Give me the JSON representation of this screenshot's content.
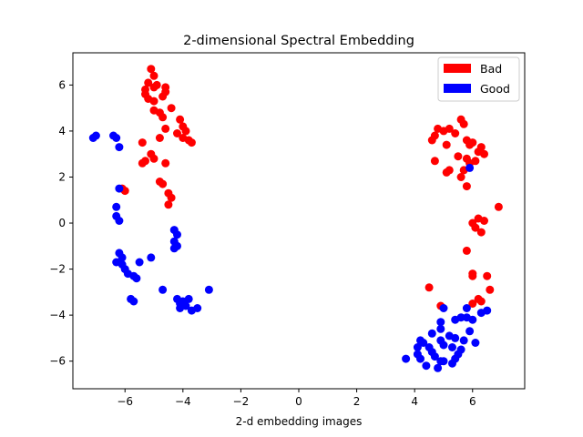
{
  "chart_data": {
    "type": "scatter",
    "title": "2-dimensional Spectral Embedding",
    "xlabel": "2-d embedding images",
    "ylabel": "",
    "xlim": [
      -7.8,
      7.8
    ],
    "ylim": [
      -7.2,
      7.4
    ],
    "xticks": [
      -6,
      -4,
      -2,
      0,
      2,
      4,
      6
    ],
    "yticks": [
      -6,
      -4,
      -2,
      0,
      2,
      4,
      6
    ],
    "legend_position": "top-right",
    "series": [
      {
        "name": "Bad",
        "color": "#ff0000",
        "points": [
          [
            -5.1,
            6.7
          ],
          [
            -5.0,
            6.4
          ],
          [
            -5.2,
            6.1
          ],
          [
            -5.3,
            5.8
          ],
          [
            -5.0,
            5.9
          ],
          [
            -4.9,
            6.0
          ],
          [
            -4.6,
            5.9
          ],
          [
            -4.6,
            5.7
          ],
          [
            -5.3,
            5.6
          ],
          [
            -5.2,
            5.4
          ],
          [
            -5.0,
            5.3
          ],
          [
            -4.7,
            5.5
          ],
          [
            -4.4,
            5.0
          ],
          [
            -5.0,
            4.9
          ],
          [
            -4.8,
            4.8
          ],
          [
            -4.7,
            4.6
          ],
          [
            -4.1,
            4.5
          ],
          [
            -4.0,
            4.2
          ],
          [
            -4.6,
            4.1
          ],
          [
            -3.9,
            4.0
          ],
          [
            -4.2,
            3.9
          ],
          [
            -4.0,
            3.7
          ],
          [
            -3.8,
            3.6
          ],
          [
            -3.7,
            3.5
          ],
          [
            -4.8,
            3.7
          ],
          [
            -5.4,
            3.5
          ],
          [
            -5.1,
            3.0
          ],
          [
            -5.0,
            2.8
          ],
          [
            -5.3,
            2.7
          ],
          [
            -5.4,
            2.6
          ],
          [
            -4.6,
            2.6
          ],
          [
            -4.8,
            1.8
          ],
          [
            -4.7,
            1.7
          ],
          [
            -4.5,
            1.3
          ],
          [
            -4.4,
            1.1
          ],
          [
            -4.5,
            0.8
          ],
          [
            -6.1,
            1.5
          ],
          [
            -6.0,
            1.4
          ],
          [
            4.8,
            4.1
          ],
          [
            5.0,
            4.0
          ],
          [
            5.2,
            4.1
          ],
          [
            5.6,
            4.5
          ],
          [
            5.7,
            4.3
          ],
          [
            5.4,
            3.9
          ],
          [
            4.7,
            3.8
          ],
          [
            4.6,
            3.6
          ],
          [
            5.8,
            3.6
          ],
          [
            6.0,
            3.5
          ],
          [
            5.9,
            3.4
          ],
          [
            6.3,
            3.3
          ],
          [
            6.2,
            3.1
          ],
          [
            5.1,
            3.4
          ],
          [
            5.5,
            2.9
          ],
          [
            6.4,
            3.0
          ],
          [
            5.8,
            2.8
          ],
          [
            5.9,
            2.6
          ],
          [
            6.1,
            2.7
          ],
          [
            4.7,
            2.7
          ],
          [
            5.2,
            2.3
          ],
          [
            5.1,
            2.2
          ],
          [
            5.7,
            2.3
          ],
          [
            5.6,
            2.0
          ],
          [
            5.8,
            1.6
          ],
          [
            6.0,
            0.0
          ],
          [
            6.2,
            0.2
          ],
          [
            6.4,
            0.1
          ],
          [
            6.1,
            -0.2
          ],
          [
            6.3,
            -0.4
          ],
          [
            6.9,
            0.7
          ],
          [
            5.8,
            -1.2
          ],
          [
            6.0,
            -2.2
          ],
          [
            6.0,
            -2.3
          ],
          [
            6.5,
            -2.3
          ],
          [
            6.6,
            -2.9
          ],
          [
            6.0,
            -3.5
          ],
          [
            6.2,
            -3.3
          ],
          [
            4.5,
            -2.8
          ],
          [
            4.9,
            -3.6
          ],
          [
            6.3,
            -3.4
          ]
        ]
      },
      {
        "name": "Good",
        "color": "#0000ff",
        "points": [
          [
            -7.1,
            3.7
          ],
          [
            -7.0,
            3.8
          ],
          [
            -6.4,
            3.8
          ],
          [
            -6.3,
            3.7
          ],
          [
            -6.2,
            3.3
          ],
          [
            -6.2,
            1.5
          ],
          [
            -6.3,
            0.7
          ],
          [
            -6.3,
            0.3
          ],
          [
            -6.2,
            0.1
          ],
          [
            -6.2,
            -1.3
          ],
          [
            -6.1,
            -1.5
          ],
          [
            -6.3,
            -1.7
          ],
          [
            -6.1,
            -1.8
          ],
          [
            -6.0,
            -2.0
          ],
          [
            -5.9,
            -2.2
          ],
          [
            -5.7,
            -2.3
          ],
          [
            -5.6,
            -2.4
          ],
          [
            -5.8,
            -3.3
          ],
          [
            -5.7,
            -3.4
          ],
          [
            -5.5,
            -1.7
          ],
          [
            -5.1,
            -1.5
          ],
          [
            -4.3,
            -0.3
          ],
          [
            -4.2,
            -0.5
          ],
          [
            -4.3,
            -0.8
          ],
          [
            -4.2,
            -1.0
          ],
          [
            -4.3,
            -1.1
          ],
          [
            -4.7,
            -2.9
          ],
          [
            -4.2,
            -3.3
          ],
          [
            -4.1,
            -3.5
          ],
          [
            -4.0,
            -3.4
          ],
          [
            -3.8,
            -3.3
          ],
          [
            -3.9,
            -3.6
          ],
          [
            -4.1,
            -3.7
          ],
          [
            -3.7,
            -3.8
          ],
          [
            -3.5,
            -3.7
          ],
          [
            -3.1,
            -2.9
          ],
          [
            5.9,
            2.4
          ],
          [
            3.7,
            -5.9
          ],
          [
            4.1,
            -5.4
          ],
          [
            4.2,
            -5.1
          ],
          [
            4.3,
            -5.2
          ],
          [
            4.1,
            -5.7
          ],
          [
            4.2,
            -5.9
          ],
          [
            4.4,
            -6.2
          ],
          [
            4.5,
            -5.4
          ],
          [
            4.6,
            -5.6
          ],
          [
            4.7,
            -5.8
          ],
          [
            4.9,
            -6.0
          ],
          [
            4.8,
            -6.3
          ],
          [
            5.0,
            -6.0
          ],
          [
            4.6,
            -4.8
          ],
          [
            4.9,
            -4.6
          ],
          [
            4.9,
            -4.3
          ],
          [
            5.0,
            -3.7
          ],
          [
            5.2,
            -4.9
          ],
          [
            5.3,
            -5.4
          ],
          [
            5.4,
            -5.0
          ],
          [
            5.5,
            -5.7
          ],
          [
            5.6,
            -5.5
          ],
          [
            5.7,
            -5.1
          ],
          [
            5.4,
            -5.9
          ],
          [
            5.3,
            -6.1
          ],
          [
            5.4,
            -4.2
          ],
          [
            5.6,
            -4.1
          ],
          [
            5.8,
            -4.1
          ],
          [
            6.0,
            -4.2
          ],
          [
            5.9,
            -4.7
          ],
          [
            6.1,
            -5.2
          ],
          [
            5.8,
            -3.7
          ],
          [
            6.3,
            -3.9
          ],
          [
            6.5,
            -3.8
          ],
          [
            5.0,
            -5.3
          ],
          [
            4.9,
            -5.1
          ]
        ]
      }
    ]
  }
}
